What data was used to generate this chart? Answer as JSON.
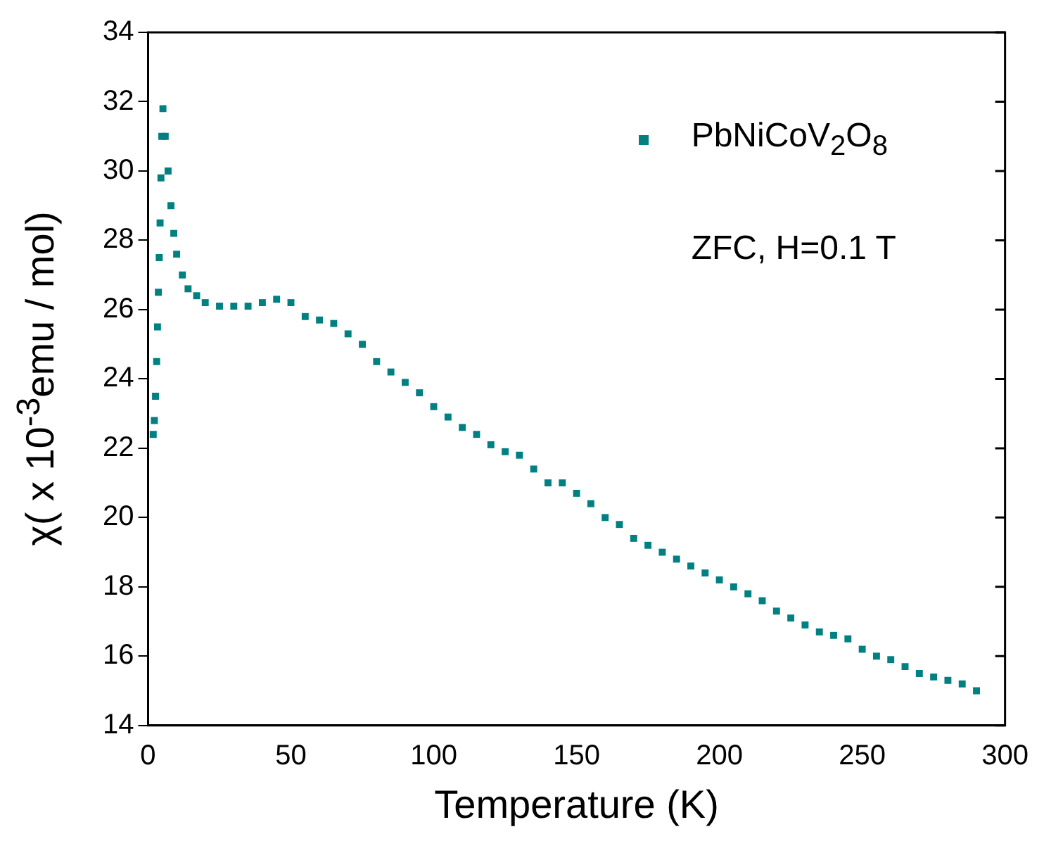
{
  "chart_data": {
    "type": "scatter",
    "xlabel": "Temperature (K)",
    "ylabel": "χ( x 10$^{-3}$emu / mol)",
    "annotations": [
      "ZFC, H=0.1 T"
    ],
    "xlim": [
      0,
      300
    ],
    "xticks": [
      0,
      50,
      100,
      150,
      200,
      250,
      300
    ],
    "ylim": [
      14,
      34
    ],
    "yticks": [
      14,
      16,
      18,
      20,
      22,
      24,
      26,
      28,
      30,
      32,
      34
    ],
    "grid": false,
    "legend": "top right",
    "marker": "square",
    "series": [
      {
        "name": "PbNiCoV$_{2}$O$_{8}$",
        "color": "#008080",
        "x": [
          1.8,
          2.2,
          2.6,
          3,
          3.3,
          3.6,
          3.9,
          4.2,
          4.5,
          4.8,
          5.2,
          6,
          7,
          8,
          9,
          10,
          12,
          14,
          17,
          20,
          25,
          30,
          35,
          40,
          45,
          50,
          55,
          60,
          65,
          70,
          75,
          80,
          85,
          90,
          95,
          100,
          105,
          110,
          115,
          120,
          125,
          130,
          135,
          140,
          145,
          150,
          155,
          160,
          165,
          170,
          175,
          180,
          185,
          190,
          195,
          200,
          205,
          210,
          215,
          220,
          225,
          230,
          235,
          240,
          245,
          250,
          255,
          260,
          265,
          270,
          275,
          280,
          285,
          290
        ],
        "values": [
          22.4,
          22.8,
          23.5,
          24.5,
          25.5,
          26.5,
          27.5,
          28.5,
          29.8,
          31,
          31.8,
          31,
          30,
          29,
          28.2,
          27.6,
          27,
          26.6,
          26.4,
          26.2,
          26.1,
          26.1,
          26.1,
          26.2,
          26.3,
          26.2,
          25.8,
          25.7,
          25.6,
          25.3,
          25,
          24.5,
          24.2,
          23.9,
          23.6,
          23.2,
          22.9,
          22.6,
          22.4,
          22.1,
          21.9,
          21.8,
          21.4,
          21,
          21,
          20.7,
          20.4,
          20,
          19.8,
          19.4,
          19.2,
          19,
          18.8,
          18.6,
          18.4,
          18.2,
          18,
          17.8,
          17.6,
          17.3,
          17.1,
          16.9,
          16.7,
          16.6,
          16.5,
          16.2,
          16,
          15.9,
          15.7,
          15.5,
          15.4,
          15.3,
          15.2,
          15
        ]
      }
    ]
  }
}
